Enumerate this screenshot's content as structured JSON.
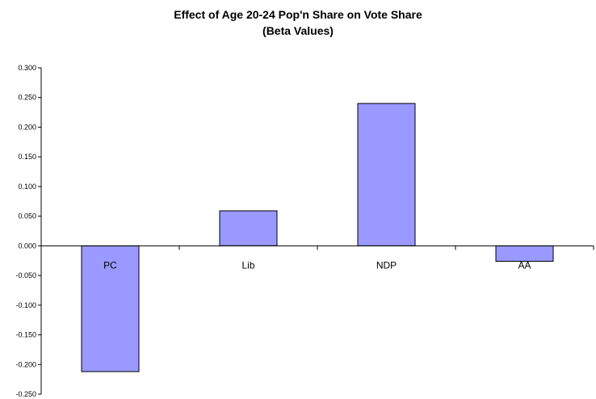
{
  "title_line1": "Effect of Age 20-24 Pop'n Share on Vote Share",
  "title_line2": "(Beta Values)",
  "chart_data": {
    "type": "bar",
    "title": "Effect of Age 20-24 Pop'n Share on Vote Share (Beta Values)",
    "categories": [
      "PC",
      "Lib",
      "NDP",
      "AA"
    ],
    "values": [
      -0.212,
      0.059,
      0.24,
      -0.026
    ],
    "ylim": [
      -0.25,
      0.3
    ],
    "yticks": [
      "0.300",
      "0.250",
      "0.200",
      "0.150",
      "0.100",
      "0.050",
      "0.000",
      "-0.050",
      "-0.100",
      "-0.150",
      "-0.200",
      "-0.250"
    ],
    "grid": false,
    "legend": "none",
    "bar_color": "#9999FF",
    "bar_edge_color": "#000000"
  }
}
